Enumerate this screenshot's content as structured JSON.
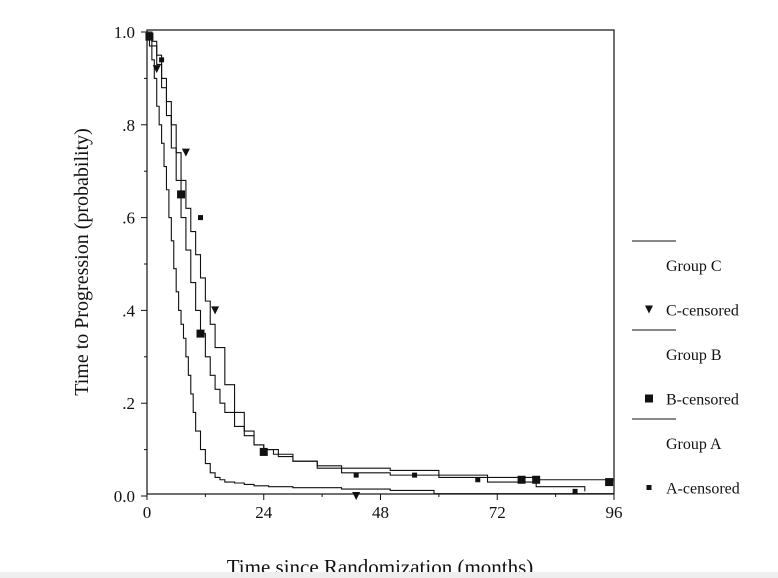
{
  "chart_data": {
    "type": "line",
    "title": "",
    "xlabel": "Time since Randomization (months)",
    "ylabel": "Time to Progression (probability)",
    "xlim": [
      0,
      96
    ],
    "ylim": [
      0,
      1.0
    ],
    "x_ticks": [
      0,
      24,
      48,
      72,
      96
    ],
    "x_tick_labels": [
      "0",
      "24",
      "48",
      "72",
      "96"
    ],
    "y_ticks": [
      0,
      0.2,
      0.4,
      0.6,
      0.8,
      1.0
    ],
    "y_tick_labels": [
      "0.0",
      ".2",
      ".4",
      ".6",
      ".8",
      "1.0"
    ],
    "grid": false,
    "legend_position": "right",
    "legend": [
      {
        "label": "Group C",
        "kind": "line"
      },
      {
        "label": "C-censored",
        "kind": "triangle"
      },
      {
        "label": "Group B",
        "kind": "line"
      },
      {
        "label": "B-censored",
        "kind": "square-large"
      },
      {
        "label": "Group A",
        "kind": "line"
      },
      {
        "label": "A-censored",
        "kind": "square-small"
      }
    ],
    "series": [
      {
        "name": "Group C",
        "x": [
          0,
          0.5,
          1,
          1.5,
          2,
          2.5,
          3,
          3.5,
          4,
          4.5,
          5,
          5.5,
          6,
          6.5,
          7,
          7.5,
          8,
          8.5,
          9,
          9.5,
          10,
          11,
          12,
          13,
          14,
          15,
          16,
          18,
          20,
          22,
          25,
          30,
          40,
          50,
          59,
          96
        ],
        "y": [
          1.0,
          0.97,
          0.94,
          0.9,
          0.84,
          0.8,
          0.76,
          0.71,
          0.66,
          0.6,
          0.55,
          0.49,
          0.44,
          0.4,
          0.37,
          0.34,
          0.3,
          0.26,
          0.22,
          0.18,
          0.14,
          0.1,
          0.07,
          0.05,
          0.04,
          0.035,
          0.03,
          0.028,
          0.025,
          0.022,
          0.02,
          0.018,
          0.015,
          0.012,
          0.005,
          0.005
        ],
        "censored_x": [
          2,
          8,
          14,
          43
        ],
        "censored_y": [
          0.92,
          0.74,
          0.4,
          0.0
        ]
      },
      {
        "name": "Group B",
        "x": [
          0,
          1,
          2,
          3,
          4,
          5,
          6,
          7,
          8,
          9,
          10,
          11,
          12,
          13,
          14,
          15,
          16,
          18,
          20,
          22,
          24,
          27,
          30,
          35,
          40,
          50,
          60,
          70,
          80,
          96
        ],
        "y": [
          1.0,
          0.97,
          0.93,
          0.88,
          0.82,
          0.75,
          0.68,
          0.6,
          0.53,
          0.46,
          0.4,
          0.35,
          0.3,
          0.26,
          0.23,
          0.2,
          0.18,
          0.15,
          0.13,
          0.11,
          0.1,
          0.085,
          0.075,
          0.065,
          0.06,
          0.055,
          0.045,
          0.04,
          0.035,
          0.03
        ],
        "censored_x": [
          0.5,
          7,
          11,
          24,
          77,
          80,
          95
        ],
        "censored_y": [
          0.99,
          0.65,
          0.35,
          0.095,
          0.035,
          0.035,
          0.03
        ],
        "color": "#111111"
      },
      {
        "name": "Group A",
        "x": [
          0,
          1,
          2,
          3,
          4,
          5,
          6,
          7,
          8,
          9,
          10,
          11,
          12,
          13,
          14,
          16,
          18,
          20,
          22,
          24,
          26,
          30,
          35,
          40,
          50,
          60,
          70,
          80,
          90
        ],
        "y": [
          1.0,
          0.98,
          0.95,
          0.9,
          0.85,
          0.8,
          0.74,
          0.68,
          0.62,
          0.57,
          0.52,
          0.47,
          0.42,
          0.37,
          0.32,
          0.24,
          0.18,
          0.14,
          0.11,
          0.1,
          0.09,
          0.075,
          0.06,
          0.05,
          0.045,
          0.04,
          0.03,
          0.02,
          0.01
        ],
        "censored_x": [
          3,
          11,
          43,
          55,
          68,
          88
        ],
        "censored_y": [
          0.94,
          0.6,
          0.045,
          0.045,
          0.035,
          0.01
        ],
        "color": "#111111"
      }
    ]
  }
}
